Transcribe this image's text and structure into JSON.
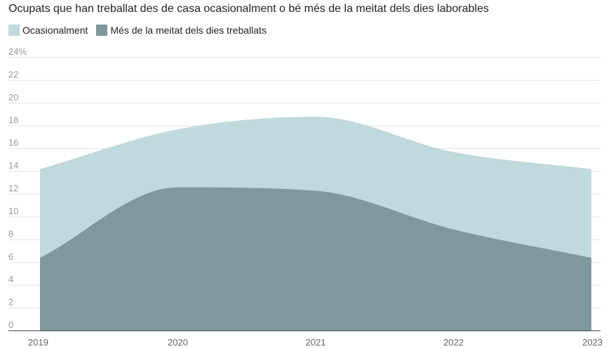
{
  "chart_data": {
    "type": "area",
    "title": "Ocupats que han treballat des de casa ocasionalment o bé més de la meitat dels dies laborables",
    "x": [
      "2019",
      "2020",
      "2021",
      "2022",
      "2023"
    ],
    "series": [
      {
        "name": "Ocasionalment",
        "values": [
          14.2,
          17.7,
          18.8,
          15.7,
          14.2
        ],
        "color": "#c0d9dc"
      },
      {
        "name": "Més de la meitat dels dies treballats",
        "values": [
          6.4,
          12.6,
          12.3,
          8.9,
          6.4
        ],
        "color": "#7f989d"
      }
    ],
    "ylim": [
      0,
      24
    ],
    "yticks": [
      "0",
      "2",
      "4",
      "6",
      "8",
      "10",
      "12",
      "14",
      "16",
      "18",
      "20",
      "22",
      "24%"
    ],
    "grid": true,
    "legend": "top-left"
  }
}
